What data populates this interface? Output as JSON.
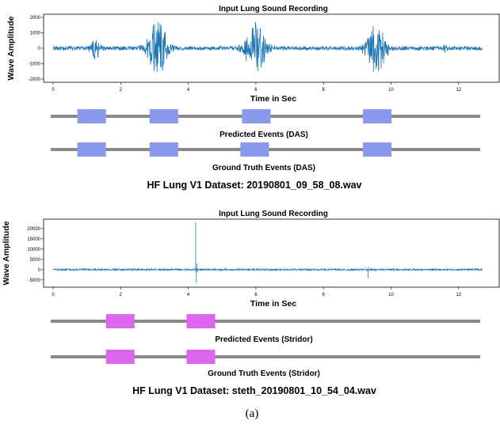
{
  "figure": {
    "caption": "(a)"
  },
  "chart_data": [
    {
      "type": "line",
      "title": "Input Lung Sound Recording",
      "xlabel": "Time in Sec",
      "ylabel": "Wave Amplitude",
      "xlim": [
        0,
        12.7
      ],
      "ylim": [
        -2000,
        2000
      ],
      "xticks": [
        "0",
        "2",
        "4",
        "6",
        "8",
        "10",
        "12"
      ],
      "yticks": [
        "-2000",
        "-1000",
        "0",
        "1000",
        "2000"
      ],
      "xtick_values": [
        0,
        2,
        4,
        6,
        8,
        10,
        12
      ],
      "ytick_values": [
        -2000,
        -1000,
        0,
        1000,
        2000
      ],
      "line_color": "#1f77b4",
      "noise": 130,
      "bursts": [
        {
          "t": 1.25,
          "amp": 700,
          "width": 0.15
        },
        {
          "t": 3.1,
          "amp": 1800,
          "width": 0.3
        },
        {
          "t": 6.0,
          "amp": 1700,
          "width": 0.32
        },
        {
          "t": 9.55,
          "amp": 1600,
          "width": 0.3
        },
        {
          "t": 11.6,
          "amp": 300,
          "width": 0.08
        }
      ],
      "events": {
        "color": "#8899ee",
        "predicted": {
          "label": "Predicted Events (DAS)",
          "intervals": [
            [
              0.7,
              1.55
            ],
            [
              2.85,
              3.7
            ],
            [
              5.6,
              6.45
            ],
            [
              9.2,
              10.05
            ]
          ]
        },
        "ground_truth": {
          "label": "Ground Truth Events (DAS)",
          "intervals": [
            [
              0.7,
              1.55
            ],
            [
              2.85,
              3.7
            ],
            [
              5.55,
              6.4
            ],
            [
              9.2,
              10.05
            ]
          ]
        }
      },
      "dataset_label": "HF Lung V1 Dataset: 20190801_09_58_08.wav"
    },
    {
      "type": "line",
      "title": "Input Lung Sound Recording",
      "xlabel": "Time in Sec",
      "ylabel": "Wave Amplitude",
      "xlim": [
        0,
        12.7
      ],
      "ylim": [
        -7000,
        23000
      ],
      "xticks": [
        "0",
        "2",
        "4",
        "6",
        "8",
        "10",
        "12"
      ],
      "yticks": [
        "-5000",
        "0",
        "5000",
        "10000",
        "15000",
        "20000"
      ],
      "xtick_values": [
        0,
        2,
        4,
        6,
        8,
        10,
        12
      ],
      "ytick_values": [
        -5000,
        0,
        5000,
        10000,
        15000,
        20000
      ],
      "line_color": "#1f77b4",
      "noise": 400,
      "spikes": [
        {
          "t": 4.2,
          "values": [
            -1000,
            23000,
            -6500,
            3000,
            -1500
          ]
        },
        {
          "t": 9.3,
          "values": [
            -900,
            -4200,
            1200
          ]
        }
      ],
      "events": {
        "color": "#dd66ee",
        "predicted": {
          "label": "Predicted Events (Stridor)",
          "intervals": [
            [
              1.55,
              2.4
            ],
            [
              3.95,
              4.8
            ]
          ]
        },
        "ground_truth": {
          "label": "Ground Truth Events (Stridor)",
          "intervals": [
            [
              1.55,
              2.4
            ],
            [
              3.95,
              4.8
            ]
          ]
        }
      },
      "dataset_label": "HF Lung V1 Dataset: steth_20190801_10_54_04.wav"
    }
  ]
}
